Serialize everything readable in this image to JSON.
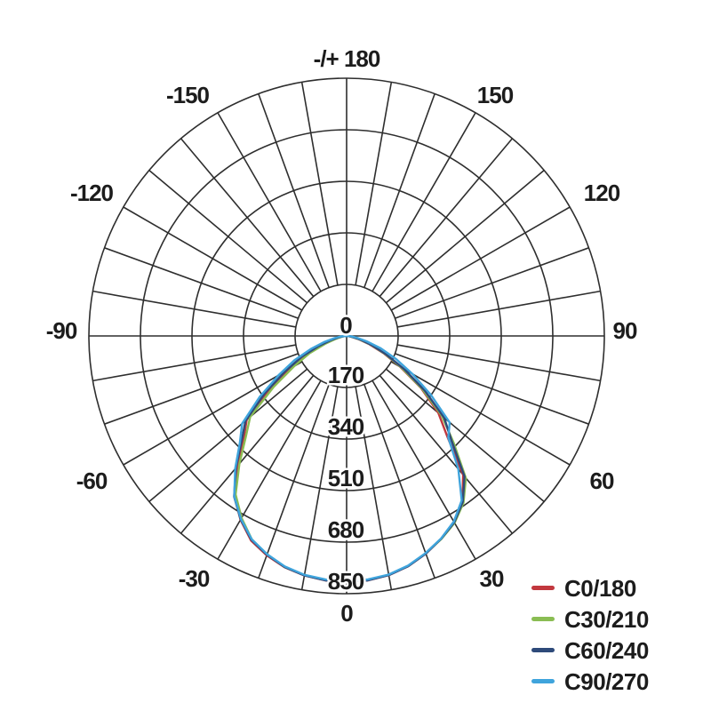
{
  "page": {
    "background": "#ffffff"
  },
  "chart_data": {
    "type": "line",
    "subtype": "polar-photometric-distribution",
    "title": "",
    "grid_on": true,
    "grid_angle_step_deg": 10,
    "grid_color": "#2e2e2e",
    "text_color": "#1c1c1c",
    "radial_axis_label": "",
    "radial_ticks": [
      0,
      170,
      340,
      510,
      680,
      850
    ],
    "radial_max": 850,
    "angle_labels": [
      {
        "text": "-/+ 180",
        "angle_deg": 180
      },
      {
        "text": "-150",
        "angle_deg": -150
      },
      {
        "text": "150",
        "angle_deg": 150
      },
      {
        "text": "-120",
        "angle_deg": -120
      },
      {
        "text": "120",
        "angle_deg": 120
      },
      {
        "text": "-90",
        "angle_deg": -90
      },
      {
        "text": "90",
        "angle_deg": 90
      },
      {
        "text": "-60",
        "angle_deg": -60
      },
      {
        "text": "60",
        "angle_deg": 60
      },
      {
        "text": "-30",
        "angle_deg": -30
      },
      {
        "text": "30",
        "angle_deg": 30
      },
      {
        "text": "0",
        "angle_deg": 0
      }
    ],
    "legend_position": "bottom-right",
    "gamma_deg": [
      -90,
      -85,
      -80,
      -75,
      -70,
      -65,
      -60,
      -55,
      -50,
      -45,
      -40,
      -35,
      -30,
      -25,
      -20,
      -15,
      -10,
      -5,
      0,
      5,
      10,
      15,
      20,
      25,
      30,
      35,
      40,
      45,
      50,
      55,
      60,
      65,
      70,
      75,
      80,
      85,
      90
    ],
    "series": [
      {
        "name": "C0/180",
        "color": "#c2383e",
        "intensity_cd": [
          0,
          10,
          22,
          45,
          85,
          150,
          215,
          310,
          430,
          480,
          560,
          645,
          700,
          745,
          770,
          790,
          802,
          809,
          812,
          809,
          801,
          786,
          764,
          738,
          710,
          666,
          598,
          470,
          395,
          300,
          205,
          135,
          80,
          40,
          15,
          6,
          0
        ]
      },
      {
        "name": "C30/210",
        "color": "#8abd53",
        "intensity_cd": [
          0,
          8,
          18,
          38,
          75,
          135,
          200,
          295,
          415,
          470,
          550,
          638,
          693,
          740,
          767,
          789,
          801,
          808,
          809,
          808,
          800,
          785,
          763,
          739,
          712,
          672,
          612,
          500,
          410,
          305,
          210,
          140,
          85,
          45,
          18,
          7,
          0
        ]
      },
      {
        "name": "C60/240",
        "color": "#2e4a7a",
        "intensity_cd": [
          0,
          12,
          28,
          55,
          100,
          165,
          235,
          330,
          435,
          490,
          568,
          647,
          699,
          742,
          768,
          789,
          802,
          809,
          811,
          809,
          801,
          786,
          764,
          738,
          710,
          668,
          605,
          490,
          420,
          315,
          220,
          145,
          88,
          48,
          20,
          8,
          0
        ]
      },
      {
        "name": "C90/270",
        "color": "#3fa4dc",
        "intensity_cd": [
          0,
          18,
          40,
          75,
          125,
          190,
          260,
          350,
          450,
          498,
          572,
          646,
          697,
          740,
          766,
          787,
          800,
          806,
          808,
          806,
          799,
          784,
          762,
          737,
          707,
          662,
          573,
          474,
          444,
          340,
          250,
          180,
          120,
          68,
          35,
          15,
          0
        ]
      }
    ]
  }
}
